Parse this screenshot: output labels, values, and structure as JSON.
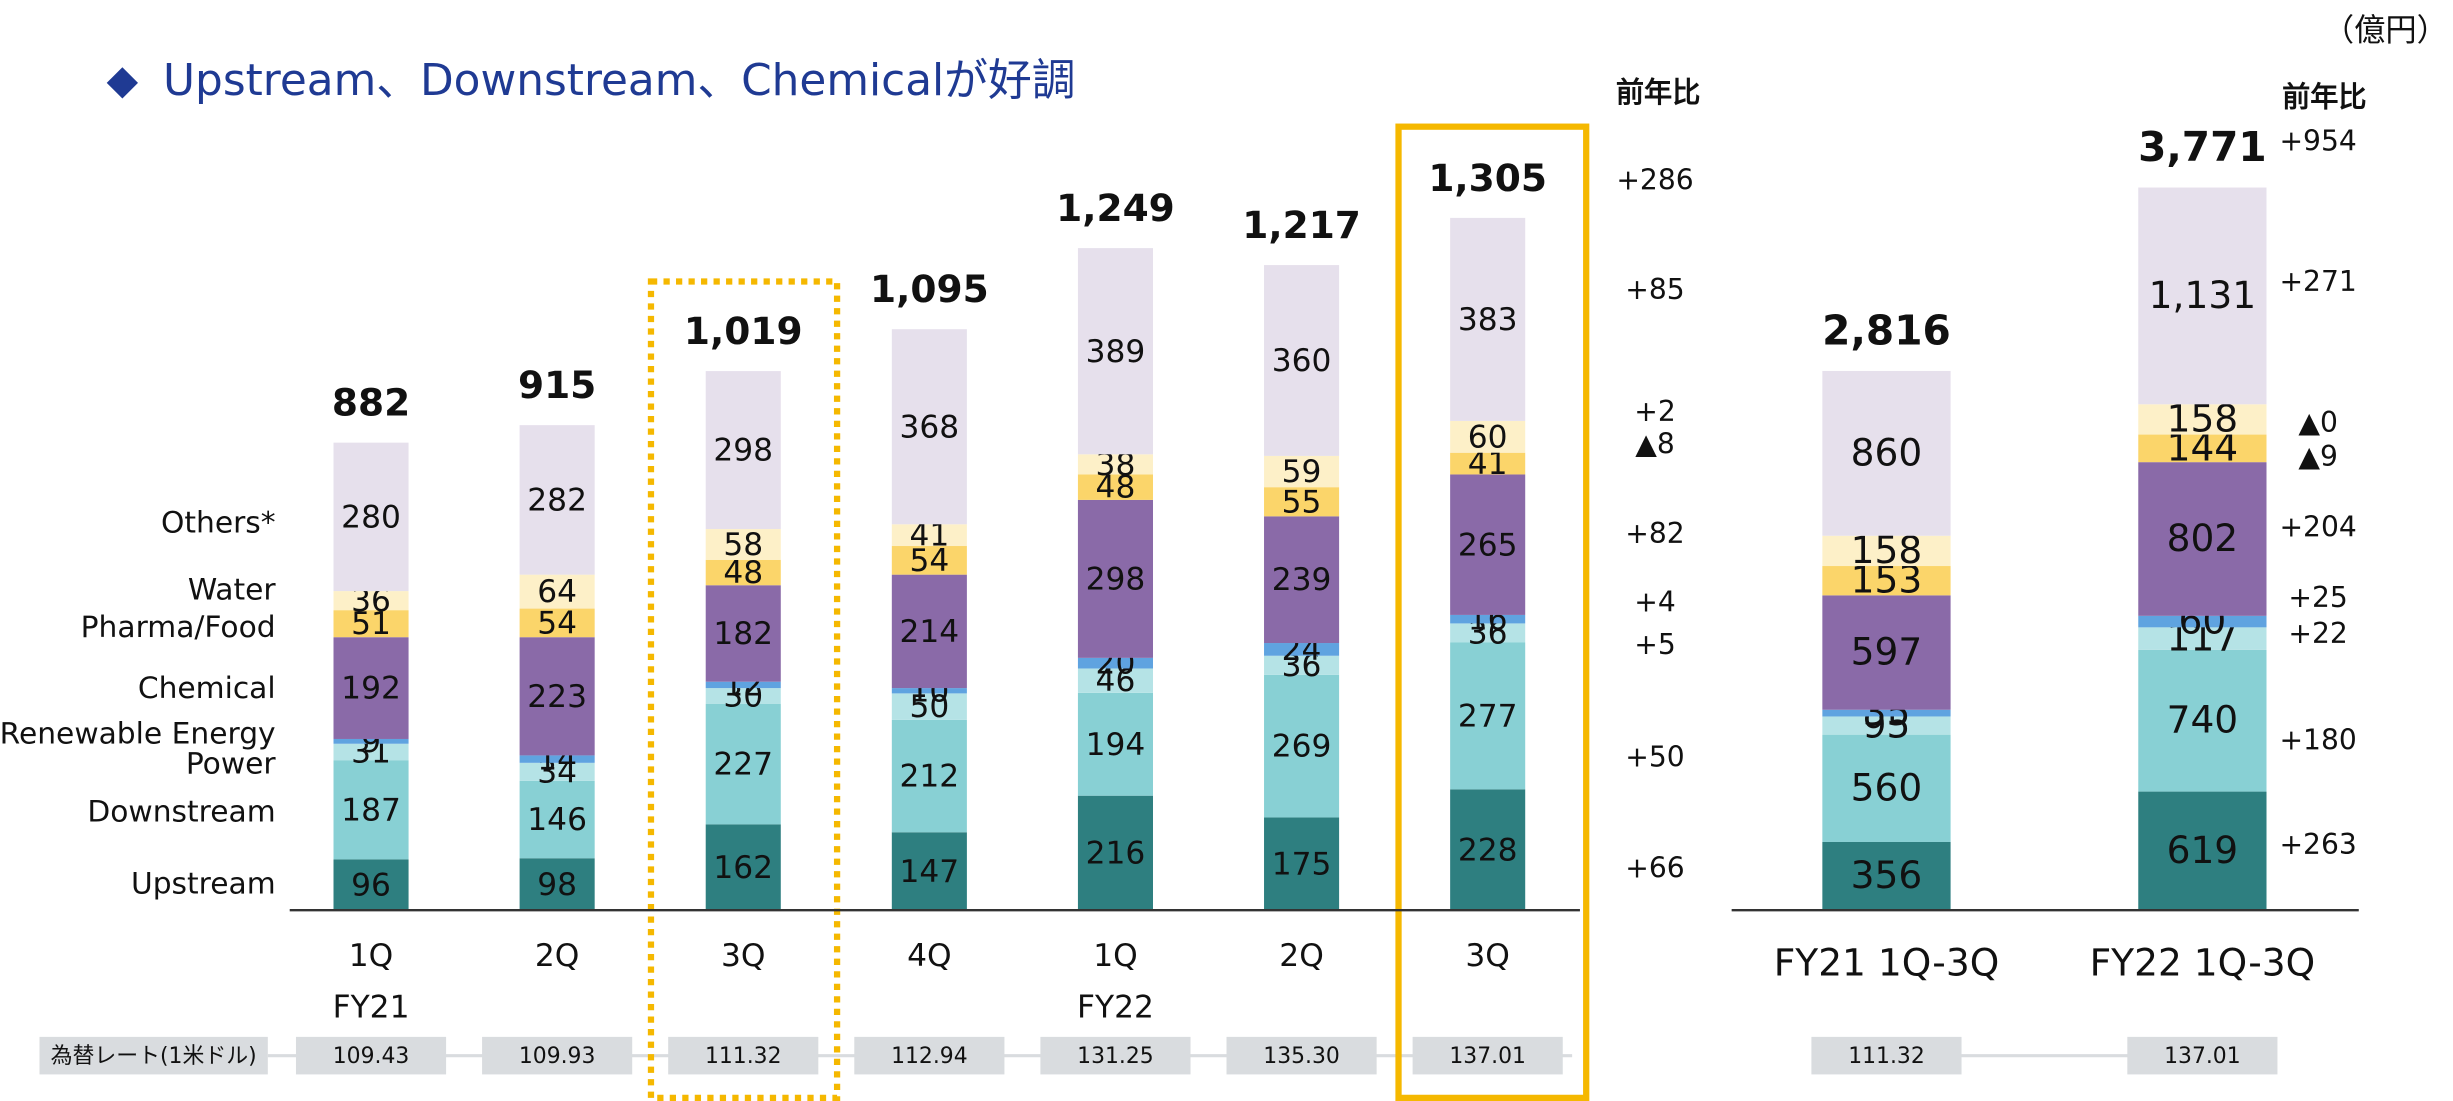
{
  "unit_label": "（億円）",
  "title": "Upstream、Downstream、Chemicalが好調",
  "fx_label": "為替レート(1米ドル)",
  "chart_data": [
    {
      "type": "bar",
      "stacked": true,
      "categories": [
        "1Q",
        "2Q",
        "3Q",
        "4Q",
        "1Q",
        "2Q",
        "3Q"
      ],
      "groups": [
        "FY21",
        "FY22"
      ],
      "series": [
        {
          "name": "Upstream",
          "color": "#2e7f80",
          "values": [
            96,
            98,
            162,
            147,
            216,
            175,
            228
          ]
        },
        {
          "name": "Downstream",
          "color": "#88d0d4",
          "values": [
            187,
            146,
            227,
            212,
            194,
            269,
            277
          ]
        },
        {
          "name": "Power",
          "color": "#b5e3e6",
          "values": [
            31,
            34,
            30,
            50,
            46,
            36,
            36
          ]
        },
        {
          "name": "Renewable Energy",
          "color": "#5fa3e0",
          "values": [
            9,
            14,
            12,
            10,
            20,
            24,
            16
          ]
        },
        {
          "name": "Chemical",
          "color": "#8a6aa8",
          "values": [
            192,
            223,
            182,
            214,
            298,
            239,
            265
          ]
        },
        {
          "name": "Pharma/Food",
          "color": "#fbd56a",
          "values": [
            51,
            54,
            48,
            54,
            48,
            55,
            41
          ]
        },
        {
          "name": "Water",
          "color": "#fdf0c8",
          "values": [
            36,
            64,
            58,
            41,
            38,
            59,
            60
          ]
        },
        {
          "name": "Others*",
          "color": "#e6e0ec",
          "values": [
            280,
            282,
            298,
            368,
            389,
            360,
            383
          ]
        }
      ],
      "totals": [
        882,
        915,
        1019,
        1095,
        1249,
        1217,
        1305
      ],
      "total_labels": [
        "882",
        "915",
        "1,019",
        "1,095",
        "1,249",
        "1,217",
        "1,305"
      ],
      "ylim": [
        0,
        1540
      ],
      "yoy_header": "前年比",
      "yoy": [
        "+66",
        "+50",
        "+5",
        "+4",
        "+82",
        "▲8",
        "+2",
        "+85",
        "+286"
      ],
      "fx_rates": [
        "109.43",
        "109.93",
        "111.32",
        "112.94",
        "131.25",
        "135.30",
        "137.01"
      ]
    },
    {
      "type": "bar",
      "stacked": true,
      "categories": [
        "FY21 1Q-3Q",
        "FY22 1Q-3Q"
      ],
      "series": [
        {
          "name": "Upstream",
          "color": "#2e7f80",
          "values": [
            356,
            619
          ]
        },
        {
          "name": "Downstream",
          "color": "#88d0d4",
          "values": [
            560,
            740
          ]
        },
        {
          "name": "Power",
          "color": "#b5e3e6",
          "values": [
            95,
            117
          ]
        },
        {
          "name": "Renewable Energy",
          "color": "#5fa3e0",
          "values": [
            35,
            60
          ]
        },
        {
          "name": "Chemical",
          "color": "#8a6aa8",
          "values": [
            597,
            802
          ]
        },
        {
          "name": "Pharma/Food",
          "color": "#fbd56a",
          "values": [
            153,
            144
          ]
        },
        {
          "name": "Water",
          "color": "#fdf0c8",
          "values": [
            158,
            158
          ]
        },
        {
          "name": "Others*",
          "color": "#e6e0ec",
          "values": [
            860,
            1131
          ]
        }
      ],
      "totals": [
        2816,
        3771
      ],
      "total_labels": [
        "2,816",
        "3,771"
      ],
      "value_labels": {
        "7": [
          "860",
          "1,131"
        ]
      },
      "ylim": [
        0,
        4260
      ],
      "yoy_header": "前年比",
      "yoy": [
        "+263",
        "+180",
        "+22",
        "+25",
        "+204",
        "▲9",
        "▲0",
        "+271",
        "+954"
      ],
      "fx_rates": [
        "111.32",
        "137.01"
      ]
    }
  ]
}
